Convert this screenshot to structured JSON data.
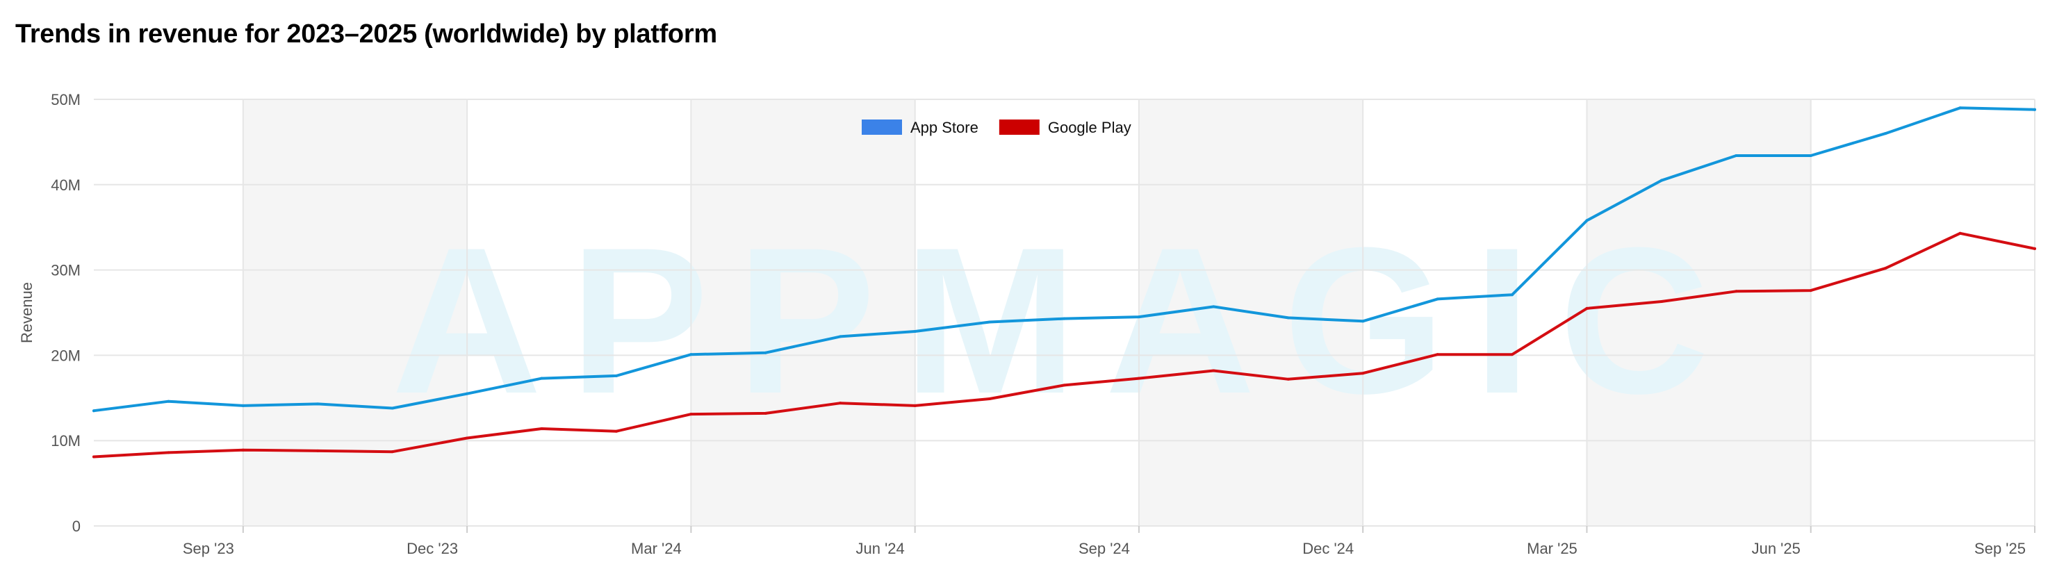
{
  "title": "Trends in revenue for 2023–2025 (worldwide) by platform",
  "watermark": "APPMAGIC",
  "chart_data": {
    "type": "line",
    "title": "Trends in revenue for 2023–2025 (worldwide) by platform",
    "xlabel": "",
    "ylabel": "Revenue",
    "ylim": [
      0,
      50000000
    ],
    "y_ticks": [
      {
        "value": 0,
        "label": "0"
      },
      {
        "value": 10000000,
        "label": "10M"
      },
      {
        "value": 20000000,
        "label": "20M"
      },
      {
        "value": 30000000,
        "label": "30M"
      },
      {
        "value": 40000000,
        "label": "40M"
      },
      {
        "value": 50000000,
        "label": "50M"
      }
    ],
    "x": [
      "2023-07",
      "2023-08",
      "2023-09",
      "2023-10",
      "2023-11",
      "2023-12",
      "2024-01",
      "2024-02",
      "2024-03",
      "2024-04",
      "2024-05",
      "2024-06",
      "2024-07",
      "2024-08",
      "2024-09",
      "2024-10",
      "2024-11",
      "2024-12",
      "2025-01",
      "2025-02",
      "2025-03",
      "2025-04",
      "2025-05",
      "2025-06",
      "2025-07",
      "2025-08",
      "2025-09"
    ],
    "x_tick_labels": [
      "Sep '23",
      "Dec '23",
      "Mar '24",
      "Jun '24",
      "Sep '24",
      "Dec '24",
      "Mar '25",
      "Jun '25",
      "Sep '25"
    ],
    "series": [
      {
        "name": "App Store",
        "color": "#1296db",
        "values": [
          13.5,
          14.6,
          14.1,
          14.3,
          13.8,
          15.5,
          17.3,
          17.6,
          20.1,
          20.3,
          22.2,
          22.8,
          23.9,
          24.3,
          24.5,
          25.7,
          24.4,
          24.0,
          26.6,
          27.1,
          35.8,
          40.5,
          43.4,
          43.4,
          46.0,
          49.0,
          48.8
        ],
        "unit": "M"
      },
      {
        "name": "Google Play",
        "color": "#d40d12",
        "values": [
          8.1,
          8.6,
          8.9,
          8.8,
          8.7,
          10.3,
          11.4,
          11.1,
          13.1,
          13.2,
          14.4,
          14.1,
          14.9,
          16.5,
          17.3,
          18.2,
          17.2,
          17.9,
          20.1,
          20.1,
          25.5,
          26.3,
          27.5,
          27.6,
          30.2,
          34.3,
          32.5
        ],
        "unit": "M"
      }
    ],
    "legend": {
      "placement": "top-center",
      "items": [
        {
          "label": "App Store",
          "color": "#3b82e8"
        },
        {
          "label": "Google Play",
          "color": "#cc0000"
        }
      ]
    },
    "shaded_bands": [
      {
        "from": "2023-09",
        "to": "2023-12"
      },
      {
        "from": "2024-03",
        "to": "2024-06"
      },
      {
        "from": "2024-09",
        "to": "2024-12"
      },
      {
        "from": "2025-03",
        "to": "2025-06"
      }
    ],
    "grid": true
  }
}
